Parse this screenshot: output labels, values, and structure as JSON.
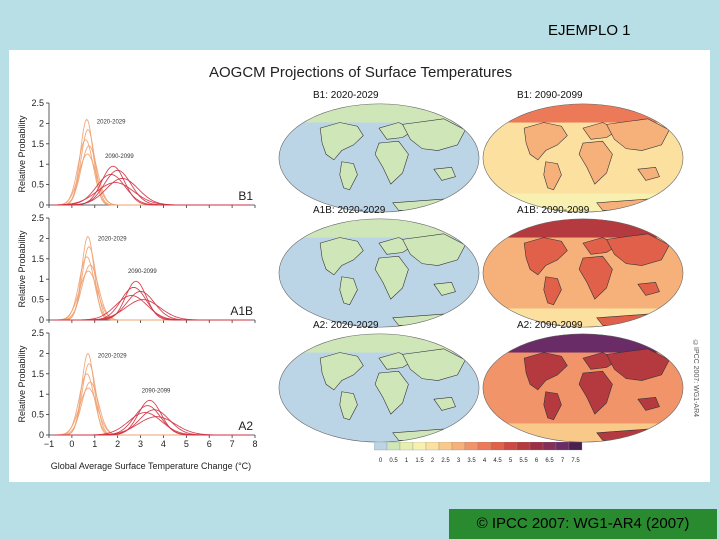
{
  "slide_title": "EJEMPLO 1",
  "credit": "© IPCC 2007: WG1-AR4 (2007)",
  "watermark": "©IPCC 2007: WG1-AR4",
  "chart_data": {
    "type": "line",
    "title": "AOGCM Projections of Surface Temperatures",
    "xlabel": "Global Average Surface Temperature Change (°C)",
    "ylabel": "Relative Probability",
    "xlim": [
      -1,
      8
    ],
    "ylim": [
      0,
      2.5
    ],
    "x_ticks": [
      -1,
      0,
      1,
      2,
      3,
      4,
      5,
      6,
      7,
      8
    ],
    "y_ticks": [
      0,
      0.5,
      1,
      1.5,
      2,
      2.5
    ],
    "near_color": "#f0a070",
    "far_color": "#d03040",
    "panels": [
      {
        "scenario": "B1",
        "near_label": "2020-2029",
        "far_label": "2090-2099",
        "near_series": [
          {
            "peak_x": 0.65,
            "peak_y": 2.1,
            "width": 0.28
          },
          {
            "peak_x": 0.7,
            "peak_y": 1.85,
            "width": 0.3
          },
          {
            "peak_x": 0.6,
            "peak_y": 1.6,
            "width": 0.33
          },
          {
            "peak_x": 0.75,
            "peak_y": 1.45,
            "width": 0.35
          },
          {
            "peak_x": 0.68,
            "peak_y": 1.25,
            "width": 0.38
          }
        ],
        "far_series": [
          {
            "peak_x": 1.8,
            "peak_y": 0.95,
            "width": 0.5
          },
          {
            "peak_x": 2.0,
            "peak_y": 0.85,
            "width": 0.58
          },
          {
            "peak_x": 1.7,
            "peak_y": 0.75,
            "width": 0.62
          },
          {
            "peak_x": 2.2,
            "peak_y": 0.65,
            "width": 0.7
          },
          {
            "peak_x": 1.9,
            "peak_y": 0.55,
            "width": 0.8
          }
        ]
      },
      {
        "scenario": "A1B",
        "near_label": "2020-2029",
        "far_label": "2090-2099",
        "near_series": [
          {
            "peak_x": 0.7,
            "peak_y": 2.05,
            "width": 0.27
          },
          {
            "peak_x": 0.75,
            "peak_y": 1.8,
            "width": 0.3
          },
          {
            "peak_x": 0.65,
            "peak_y": 1.55,
            "width": 0.33
          },
          {
            "peak_x": 0.8,
            "peak_y": 1.35,
            "width": 0.36
          },
          {
            "peak_x": 0.72,
            "peak_y": 1.2,
            "width": 0.39
          }
        ],
        "far_series": [
          {
            "peak_x": 2.8,
            "peak_y": 0.95,
            "width": 0.45
          },
          {
            "peak_x": 2.7,
            "peak_y": 0.8,
            "width": 0.55
          },
          {
            "peak_x": 3.0,
            "peak_y": 0.7,
            "width": 0.6
          },
          {
            "peak_x": 2.6,
            "peak_y": 0.6,
            "width": 0.68
          },
          {
            "peak_x": 3.1,
            "peak_y": 0.5,
            "width": 0.75
          }
        ]
      },
      {
        "scenario": "A2",
        "near_label": "2020-2029",
        "far_label": "2090-2099",
        "near_series": [
          {
            "peak_x": 0.7,
            "peak_y": 2.0,
            "width": 0.27
          },
          {
            "peak_x": 0.75,
            "peak_y": 1.75,
            "width": 0.3
          },
          {
            "peak_x": 0.65,
            "peak_y": 1.5,
            "width": 0.33
          },
          {
            "peak_x": 0.8,
            "peak_y": 1.3,
            "width": 0.36
          },
          {
            "peak_x": 0.72,
            "peak_y": 1.15,
            "width": 0.39
          }
        ],
        "far_series": [
          {
            "peak_x": 3.4,
            "peak_y": 0.85,
            "width": 0.5
          },
          {
            "peak_x": 3.3,
            "peak_y": 0.72,
            "width": 0.58
          },
          {
            "peak_x": 3.6,
            "peak_y": 0.62,
            "width": 0.65
          },
          {
            "peak_x": 3.2,
            "peak_y": 0.55,
            "width": 0.72
          },
          {
            "peak_x": 3.7,
            "peak_y": 0.45,
            "width": 0.8
          }
        ]
      }
    ],
    "maps": [
      {
        "label": "B1: 2020-2029",
        "intensity": 0.5
      },
      {
        "label": "B1: 2090-2099",
        "intensity": 3.0
      },
      {
        "label": "A1B: 2020-2029",
        "intensity": 0.55
      },
      {
        "label": "A1B: 2090-2099",
        "intensity": 4.3
      },
      {
        "label": "A2: 2020-2029",
        "intensity": 0.55
      },
      {
        "label": "A2: 2090-2099",
        "intensity": 5.2
      }
    ],
    "colorbar": {
      "labels": [
        "0",
        "0.5",
        "1",
        "1.5",
        "2",
        "2.5",
        "3",
        "3.5",
        "4",
        "4.5",
        "5",
        "5.5",
        "6",
        "6.5",
        "7",
        "7.5"
      ],
      "colors": [
        "#bcd5e6",
        "#cfe6b8",
        "#e6efb0",
        "#f7f0b0",
        "#fbe0a0",
        "#f9c98a",
        "#f6b07a",
        "#f2946a",
        "#ec7a58",
        "#e0604a",
        "#cc4a42",
        "#b53a40",
        "#9e2e46",
        "#843058",
        "#6a2c66",
        "#4a2050"
      ]
    }
  }
}
